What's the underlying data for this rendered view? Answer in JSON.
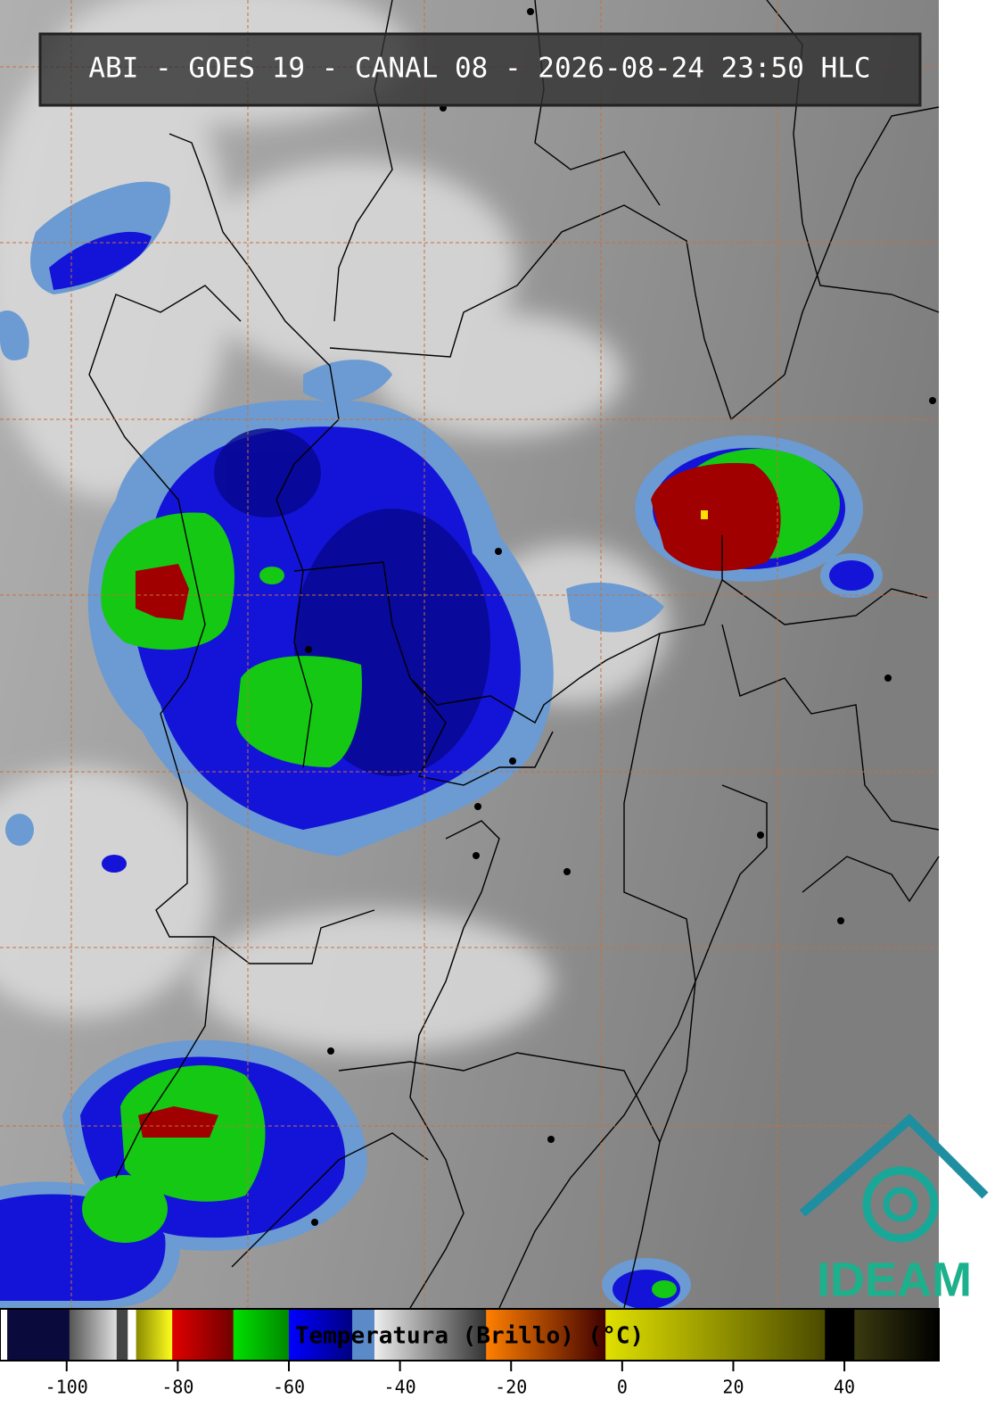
{
  "header": {
    "title": "ABI - GOES 19 - CANAL 08 - 2026-08-24 23:50 HLC"
  },
  "colorbar": {
    "label": "Temperatura (Brillo) (°C)",
    "xlim": [
      -112,
      57
    ],
    "xticks": [
      -100,
      -80,
      -60,
      -40,
      -20,
      0,
      20,
      40
    ],
    "segments": [
      {
        "from": -112,
        "to": -110.7,
        "colors": [
          "#ffffff",
          "#ffffff"
        ]
      },
      {
        "from": -110.7,
        "to": -99.5,
        "colors": [
          "#0a0a3c",
          "#0a0a3c"
        ]
      },
      {
        "from": -99.5,
        "to": -91,
        "colors": [
          "#555555",
          "#e0e0e0"
        ]
      },
      {
        "from": -91,
        "to": -89,
        "colors": [
          "#444444",
          "#444444"
        ]
      },
      {
        "from": -89,
        "to": -87.5,
        "colors": [
          "#ffffff",
          "#ffffff"
        ]
      },
      {
        "from": -87.5,
        "to": -81,
        "colors": [
          "#8a8a00",
          "#ffff20"
        ]
      },
      {
        "from": -81,
        "to": -70,
        "colors": [
          "#e00000",
          "#700000"
        ]
      },
      {
        "from": -70,
        "to": -60,
        "colors": [
          "#00e000",
          "#008800"
        ]
      },
      {
        "from": -60,
        "to": -48.6,
        "colors": [
          "#0000ff",
          "#000080"
        ]
      },
      {
        "from": -48.6,
        "to": -44.6,
        "colors": [
          "#5a8ac8",
          "#5a8ac8"
        ]
      },
      {
        "from": -44.6,
        "to": -24.5,
        "colors": [
          "#eeeeee",
          "#333333"
        ]
      },
      {
        "from": -24.5,
        "to": -3,
        "colors": [
          "#ff8000",
          "#400000"
        ]
      },
      {
        "from": -3,
        "to": 36.5,
        "colors": [
          "#e0e000",
          "#4a4a00"
        ]
      },
      {
        "from": 36.5,
        "to": 41.8,
        "colors": [
          "#000000",
          "#000000"
        ]
      },
      {
        "from": 41.8,
        "to": 57,
        "colors": [
          "#3a3a10",
          "#000000"
        ]
      }
    ]
  },
  "logo": {
    "text": "IDEAM"
  }
}
